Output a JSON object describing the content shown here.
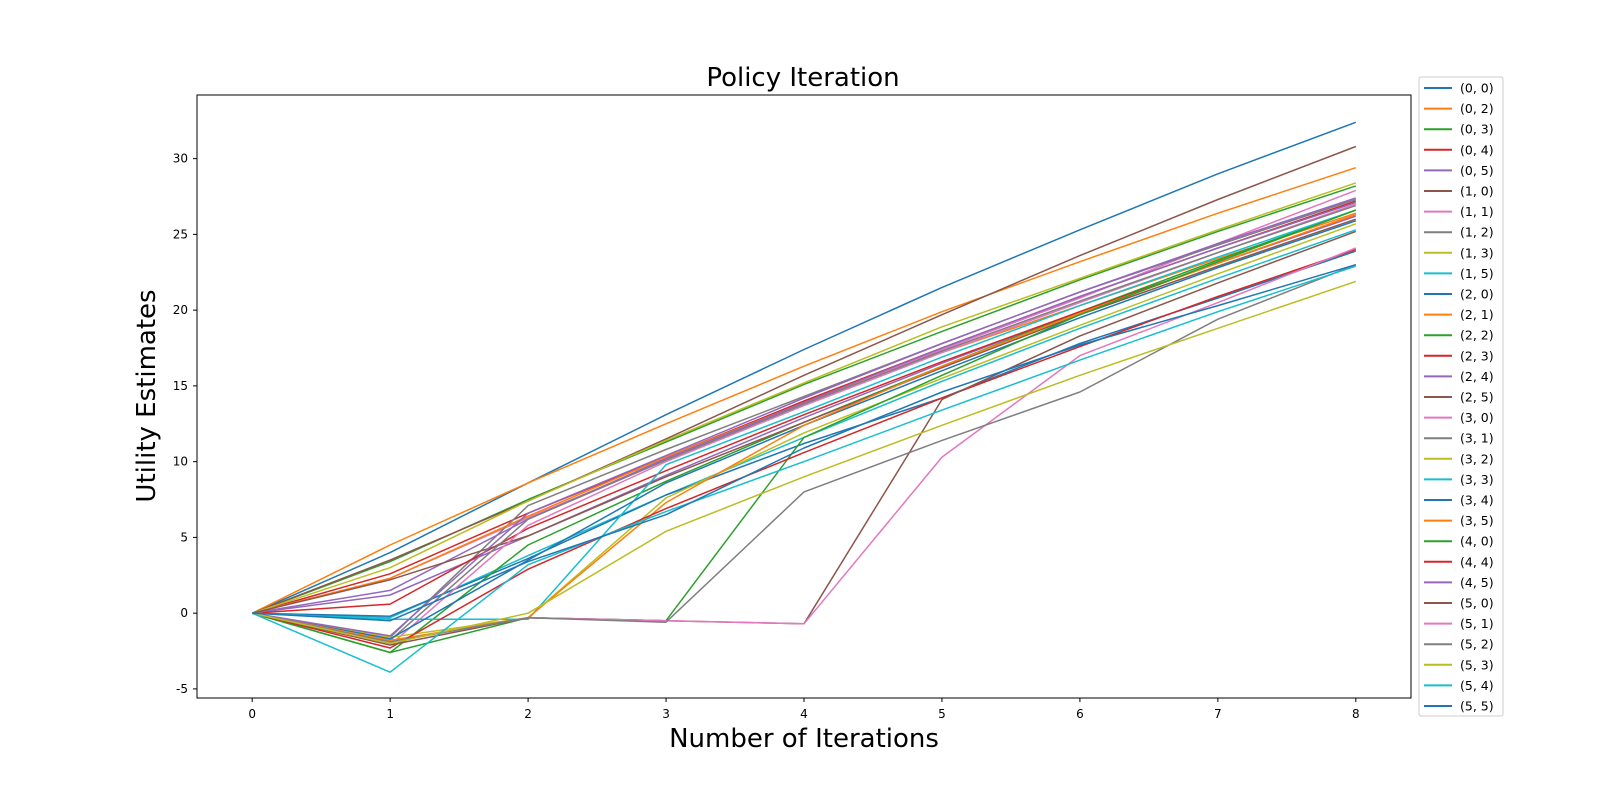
{
  "chart_data": {
    "type": "line",
    "title": "Policy Iteration",
    "xlabel": "Number of Iterations",
    "ylabel": "Utility Estimates",
    "x": [
      0,
      1,
      2,
      3,
      4,
      5,
      6,
      7,
      8
    ],
    "xlim": [
      -0.4,
      8.4
    ],
    "ylim": [
      -5.6,
      34.2
    ],
    "xticks": [
      "0",
      "1",
      "2",
      "3",
      "4",
      "5",
      "6",
      "7",
      "8"
    ],
    "yticks": [
      "-5",
      "0",
      "5",
      "10",
      "15",
      "20",
      "25",
      "30"
    ],
    "grid": false,
    "legend_position": "outside-right",
    "palette": [
      "#1f77b4",
      "#ff7f0e",
      "#2ca02c",
      "#d62728",
      "#9467bd",
      "#8c564b",
      "#e377c2",
      "#7f7f7f",
      "#bcbd22",
      "#17becf"
    ],
    "series": [
      {
        "name": "(0, 0)",
        "values": [
          0,
          4.0,
          8.6,
          13.1,
          17.4,
          21.5,
          25.3,
          29.0,
          32.4
        ]
      },
      {
        "name": "(0, 2)",
        "values": [
          0,
          4.5,
          8.6,
          12.5,
          16.3,
          19.9,
          23.2,
          26.4,
          29.4
        ]
      },
      {
        "name": "(0, 3)",
        "values": [
          0,
          3.4,
          7.5,
          11.3,
          15.1,
          18.6,
          22.0,
          25.2,
          28.2
        ]
      },
      {
        "name": "(0, 4)",
        "values": [
          0,
          2.6,
          6.6,
          10.3,
          14.0,
          17.5,
          20.9,
          24.1,
          27.2
        ]
      },
      {
        "name": "(0, 5)",
        "values": [
          0,
          1.2,
          5.1,
          9.1,
          12.9,
          16.5,
          19.9,
          23.1,
          26.2
        ]
      },
      {
        "name": "(1, 0)",
        "values": [
          0,
          3.5,
          7.4,
          11.5,
          15.7,
          19.7,
          23.6,
          27.3,
          30.8
        ]
      },
      {
        "name": "(1, 1)",
        "values": [
          0,
          2.3,
          6.3,
          10.1,
          13.8,
          17.4,
          20.8,
          24.4,
          27.9
        ]
      },
      {
        "name": "(1, 2)",
        "values": [
          0,
          -1.6,
          7.1,
          10.8,
          14.3,
          17.8,
          21.2,
          24.3,
          27.3
        ]
      },
      {
        "name": "(1, 3)",
        "values": [
          0,
          3.0,
          7.4,
          11.4,
          15.2,
          18.9,
          22.1,
          25.3,
          28.4
        ]
      },
      {
        "name": "(1, 5)",
        "values": [
          0,
          -0.3,
          3.8,
          7.8,
          11.6,
          15.3,
          18.8,
          22.1,
          25.3
        ]
      },
      {
        "name": "(2, 0)",
        "values": [
          0,
          -0.2,
          3.6,
          7.8,
          11.2,
          14.2,
          17.8,
          20.8,
          23.9
        ]
      },
      {
        "name": "(2, 1)",
        "values": [
          0,
          2.3,
          6.4,
          10.3,
          13.9,
          17.2,
          20.3,
          23.4,
          26.4
        ]
      },
      {
        "name": "(2, 2)",
        "values": [
          0,
          -2.6,
          4.5,
          8.7,
          12.6,
          16.3,
          19.9,
          23.3,
          26.6
        ]
      },
      {
        "name": "(2, 3)",
        "values": [
          0,
          0.6,
          5.6,
          9.4,
          13.1,
          16.6,
          19.9,
          23.1,
          26.3
        ]
      },
      {
        "name": "(2, 4)",
        "values": [
          0,
          1.5,
          6.2,
          10.2,
          13.9,
          17.5,
          20.9,
          24.1,
          27.1
        ]
      },
      {
        "name": "(2, 5)",
        "values": [
          0,
          2.2,
          5.1,
          9.0,
          12.6,
          16.2,
          19.7,
          22.9,
          26.0
        ]
      },
      {
        "name": "(3, 0)",
        "values": [
          0,
          -2.1,
          5.8,
          10.0,
          13.7,
          17.2,
          20.5,
          23.8,
          27.0
        ]
      },
      {
        "name": "(3, 1)",
        "values": [
          0,
          -1.8,
          6.2,
          10.1,
          13.8,
          17.3,
          20.6,
          23.8,
          26.9
        ]
      },
      {
        "name": "(3, 2)",
        "values": [
          0,
          -1.6,
          -0.3,
          7.6,
          11.9,
          15.5,
          19.0,
          22.4,
          25.7
        ]
      },
      {
        "name": "(3, 3)",
        "values": [
          0,
          -0.4,
          -0.4,
          9.8,
          13.3,
          16.9,
          20.3,
          23.5,
          26.6
        ]
      },
      {
        "name": "(3, 4)",
        "values": [
          0,
          -1.7,
          3.5,
          8.6,
          12.4,
          16.0,
          19.5,
          22.8,
          25.9
        ]
      },
      {
        "name": "(3, 5)",
        "values": [
          0,
          -1.8,
          -0.3,
          7.3,
          12.4,
          16.3,
          19.8,
          23.1,
          26.3
        ]
      },
      {
        "name": "(4, 0)",
        "values": [
          0,
          -2.6,
          -0.3,
          -0.5,
          11.6,
          15.7,
          19.7,
          23.2,
          26.6
        ]
      },
      {
        "name": "(4, 4)",
        "values": [
          0,
          -2.3,
          2.9,
          6.9,
          10.6,
          14.2,
          17.6,
          20.9,
          24.0
        ]
      },
      {
        "name": "(4, 5)",
        "values": [
          0,
          -1.5,
          6.6,
          10.4,
          14.2,
          17.8,
          21.2,
          24.4,
          27.4
        ]
      },
      {
        "name": "(5, 0)",
        "values": [
          0,
          -2.1,
          -0.3,
          -0.5,
          -0.7,
          14.1,
          18.3,
          21.8,
          25.2
        ]
      },
      {
        "name": "(5, 1)",
        "values": [
          0,
          -1.9,
          -0.3,
          -0.5,
          -0.7,
          10.3,
          17.0,
          20.5,
          24.1
        ]
      },
      {
        "name": "(5, 2)",
        "values": [
          0,
          -1.9,
          -0.3,
          -0.6,
          8.0,
          11.4,
          14.6,
          19.4,
          23.0
        ]
      },
      {
        "name": "(5, 3)",
        "values": [
          0,
          -2.0,
          0.0,
          5.4,
          9.0,
          12.4,
          15.7,
          18.8,
          21.9
        ]
      },
      {
        "name": "(5, 4)",
        "values": [
          0,
          -3.9,
          3.2,
          6.7,
          10.0,
          13.4,
          16.7,
          19.9,
          22.9
        ]
      },
      {
        "name": "(5, 5)",
        "values": [
          0,
          -0.5,
          3.4,
          6.5,
          10.9,
          14.6,
          17.7,
          20.3,
          23.0
        ]
      }
    ]
  }
}
